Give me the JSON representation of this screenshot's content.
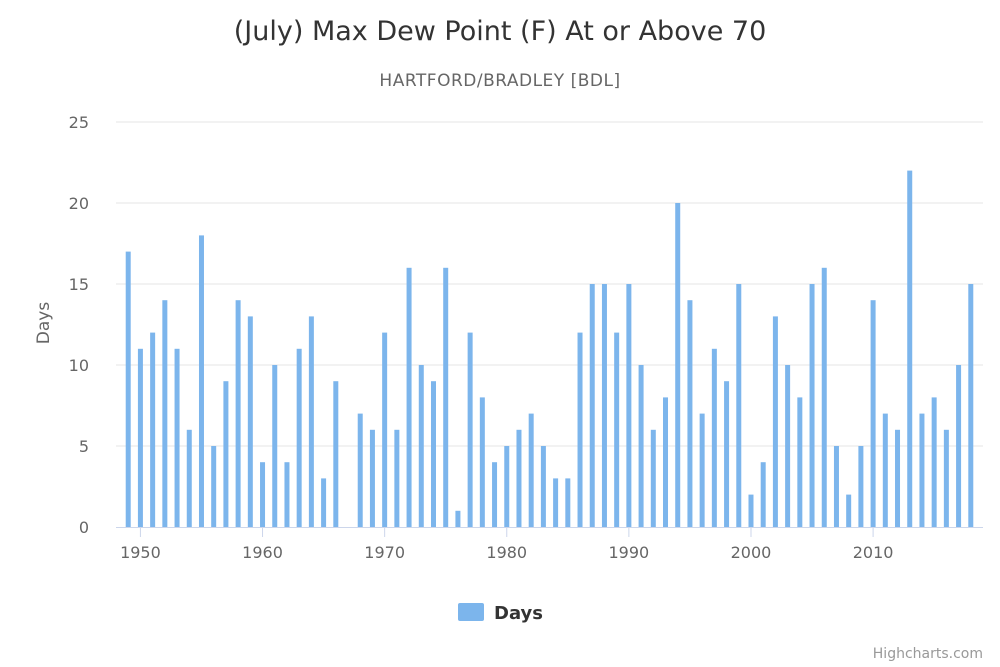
{
  "chart_data": {
    "type": "bar",
    "title": "(July) Max Dew Point (F) At or Above 70",
    "subtitle": "HARTFORD/BRADLEY [BDL]",
    "ylabel": "Days",
    "ylim": [
      0,
      25
    ],
    "yticks": [
      0,
      5,
      10,
      15,
      20,
      25
    ],
    "xticks": [
      1950,
      1960,
      1970,
      1980,
      1990,
      2000,
      2010
    ],
    "xlim": [
      1948,
      2019
    ],
    "grid": true,
    "legend_position": "bottom-center",
    "series": [
      {
        "name": "Days",
        "color": "#7cb5ec",
        "points": [
          [
            1949,
            17
          ],
          [
            1950,
            11
          ],
          [
            1951,
            12
          ],
          [
            1952,
            14
          ],
          [
            1953,
            11
          ],
          [
            1954,
            6
          ],
          [
            1955,
            18
          ],
          [
            1956,
            5
          ],
          [
            1957,
            9
          ],
          [
            1958,
            14
          ],
          [
            1959,
            13
          ],
          [
            1960,
            4
          ],
          [
            1961,
            10
          ],
          [
            1962,
            4
          ],
          [
            1963,
            11
          ],
          [
            1964,
            13
          ],
          [
            1965,
            3
          ],
          [
            1966,
            9
          ],
          [
            1968,
            7
          ],
          [
            1969,
            6
          ],
          [
            1970,
            12
          ],
          [
            1971,
            6
          ],
          [
            1972,
            16
          ],
          [
            1973,
            10
          ],
          [
            1974,
            9
          ],
          [
            1975,
            16
          ],
          [
            1976,
            1
          ],
          [
            1977,
            12
          ],
          [
            1978,
            8
          ],
          [
            1979,
            4
          ],
          [
            1980,
            5
          ],
          [
            1981,
            6
          ],
          [
            1982,
            7
          ],
          [
            1983,
            5
          ],
          [
            1984,
            3
          ],
          [
            1985,
            3
          ],
          [
            1986,
            12
          ],
          [
            1987,
            15
          ],
          [
            1988,
            15
          ],
          [
            1989,
            12
          ],
          [
            1990,
            15
          ],
          [
            1991,
            10
          ],
          [
            1992,
            6
          ],
          [
            1993,
            8
          ],
          [
            1994,
            20
          ],
          [
            1995,
            14
          ],
          [
            1996,
            7
          ],
          [
            1997,
            11
          ],
          [
            1998,
            9
          ],
          [
            1999,
            15
          ],
          [
            2000,
            2
          ],
          [
            2001,
            4
          ],
          [
            2002,
            13
          ],
          [
            2003,
            10
          ],
          [
            2004,
            8
          ],
          [
            2005,
            15
          ],
          [
            2006,
            16
          ],
          [
            2007,
            5
          ],
          [
            2008,
            2
          ],
          [
            2009,
            5
          ],
          [
            2010,
            14
          ],
          [
            2011,
            7
          ],
          [
            2012,
            6
          ],
          [
            2013,
            22
          ],
          [
            2014,
            7
          ],
          [
            2015,
            8
          ],
          [
            2016,
            6
          ],
          [
            2017,
            10
          ],
          [
            2018,
            15
          ]
        ]
      }
    ]
  },
  "credits": "Highcharts.com"
}
